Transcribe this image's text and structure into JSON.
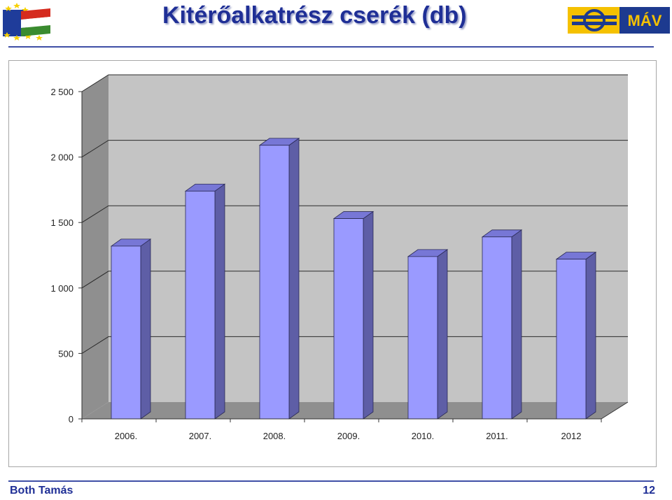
{
  "slide": {
    "title": "Kitérőalkatrész cserék (db)",
    "author": "Both Tamás",
    "page_number": "12",
    "logo_text": "MÁV"
  },
  "colors": {
    "title": "#1f2f96",
    "bar_front": "#9a9aff",
    "bar_top": "#7777d6",
    "bar_side": "#5e5ea6",
    "wall_back": "#c4c4c4",
    "wall_left": "#8f8f8f",
    "floor": "#8f8f8f",
    "mav_yellow": "#f5c100",
    "mav_blue": "#1d3a8f"
  },
  "chart_data": {
    "type": "bar",
    "categories": [
      "2006.",
      "2007.",
      "2008.",
      "2009.",
      "2010.",
      "2011.",
      "2012"
    ],
    "values": [
      1320,
      1740,
      2090,
      1530,
      1240,
      1390,
      1220
    ],
    "ylim": [
      0,
      2500
    ],
    "yticks": [
      0,
      500,
      1000,
      1500,
      2000,
      2500
    ],
    "ytick_labels": [
      "0",
      "500",
      "1 000",
      "1 500",
      "2 000",
      "2 500"
    ],
    "grid": true,
    "three_d": true,
    "legend": "none"
  }
}
